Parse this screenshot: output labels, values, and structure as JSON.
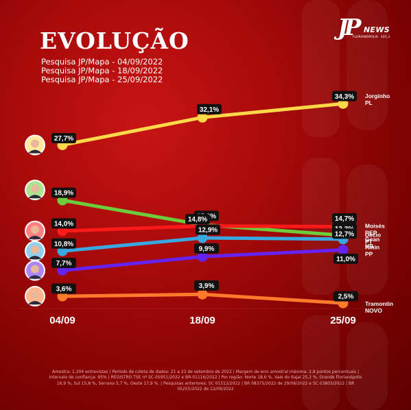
{
  "title": "EVOLUÇÃO",
  "subtitles": [
    "Pesquisa JP/Mapa - 04/09/2022",
    "Pesquisa JP/Mapa - 18/09/2022",
    "Pesquisa JP/Mapa - 25/09/2022"
  ],
  "logo": {
    "letters": "JP",
    "brand": "NEWS",
    "tagline": "FLORIANÓPOLIS · 101,3"
  },
  "footer_text": "Amostra: 1.204 entrevistas | Período de coleta de dados: 21 a 23 de setembro de 2022 | Margem de erro amostral máxima: 2,8 pontos percentuais | Intervalo de confiança: 95% | REGISTRO TSE nº SC-05951/2022 e BR-01116/2022 | Por região: Norte 18,6 %, Vale do Itajaí 25,2 %, Grande Florianópolis 16,9 %, Sul 15,8 %, Serrana 5,7 %, Oeste 17,9 %. | Pesquisas anteriores: SC 01512/2022 | BR 08375/2022 de 29/08/2022 e SC 03803/2022 | BR 05255/2022 de 12/09/2022",
  "chart_data": {
    "type": "line",
    "categories": [
      "04/09",
      "18/09",
      "25/09"
    ],
    "ylim": [
      0,
      40
    ],
    "grid": false,
    "series": [
      {
        "name": "Jorginho",
        "party": "PL",
        "color": "#ffd84a",
        "values": [
          27.7,
          32.1,
          34.3
        ],
        "labels": [
          "27,7%",
          "32,1%",
          "34,3%"
        ]
      },
      {
        "name": "Décio",
        "party": "PT",
        "color": "#6dcc3c",
        "values": [
          18.9,
          15.0,
          13.3
        ],
        "labels": [
          "18,9%",
          "15,0%",
          "13,3%"
        ]
      },
      {
        "name": "Moisés",
        "party": "REP",
        "color": "#ff1a1a",
        "values": [
          14.0,
          14.8,
          14.7
        ],
        "labels": [
          "14,0%",
          "14,8%",
          "14,7%"
        ]
      },
      {
        "name": "Gean",
        "party": "UB",
        "color": "#3aa8e0",
        "values": [
          10.8,
          12.9,
          12.7
        ],
        "labels": [
          "10,8%",
          "12,9%",
          "12,7%"
        ]
      },
      {
        "name": "Amin",
        "party": "PP",
        "color": "#6622ee",
        "values": [
          7.7,
          9.9,
          11.0
        ],
        "labels": [
          "7,7%",
          "9,9%",
          "11,0%"
        ]
      },
      {
        "name": "Tramontin",
        "party": "NOVO",
        "color": "#ff7a2a",
        "values": [
          3.6,
          3.9,
          2.5
        ],
        "labels": [
          "3,6%",
          "3,9%",
          "2,5%"
        ]
      }
    ]
  }
}
